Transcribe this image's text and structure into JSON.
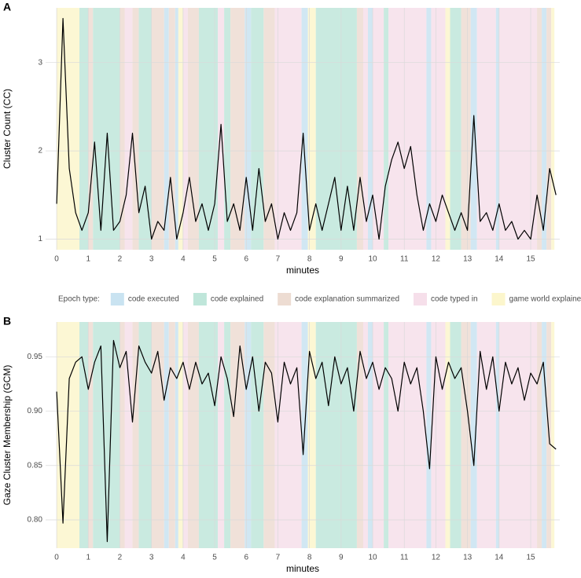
{
  "legend_title": "Epoch type:",
  "epoch_types": [
    {
      "name": "code executed",
      "color": "#c9e3f1"
    },
    {
      "name": "code explained",
      "color": "#bfe6da"
    },
    {
      "name": "code explanation summarized",
      "color": "#eddcd2"
    },
    {
      "name": "code typed in",
      "color": "#f6dfea"
    },
    {
      "name": "game world explained",
      "color": "#fcf6cc"
    }
  ],
  "epochs": [
    {
      "start": 0,
      "end": 0.72,
      "type": 4
    },
    {
      "start": 0.72,
      "end": 1.0,
      "type": 1
    },
    {
      "start": 1.0,
      "end": 1.15,
      "type": 2
    },
    {
      "start": 1.15,
      "end": 2.0,
      "type": 1
    },
    {
      "start": 2.0,
      "end": 2.15,
      "type": 2
    },
    {
      "start": 2.15,
      "end": 2.4,
      "type": 3
    },
    {
      "start": 2.4,
      "end": 2.6,
      "type": 2
    },
    {
      "start": 2.6,
      "end": 3.0,
      "type": 1
    },
    {
      "start": 3.0,
      "end": 3.4,
      "type": 2
    },
    {
      "start": 3.4,
      "end": 3.55,
      "type": 0
    },
    {
      "start": 3.55,
      "end": 3.75,
      "type": 2
    },
    {
      "start": 3.75,
      "end": 3.85,
      "type": 0
    },
    {
      "start": 3.85,
      "end": 4.0,
      "type": 4
    },
    {
      "start": 4.0,
      "end": 4.15,
      "type": 3
    },
    {
      "start": 4.15,
      "end": 4.5,
      "type": 2
    },
    {
      "start": 4.5,
      "end": 5.1,
      "type": 1
    },
    {
      "start": 5.1,
      "end": 5.3,
      "type": 3
    },
    {
      "start": 5.3,
      "end": 5.5,
      "type": 1
    },
    {
      "start": 5.5,
      "end": 5.95,
      "type": 2
    },
    {
      "start": 5.95,
      "end": 6.15,
      "type": 0
    },
    {
      "start": 6.15,
      "end": 6.55,
      "type": 1
    },
    {
      "start": 6.55,
      "end": 6.9,
      "type": 2
    },
    {
      "start": 6.9,
      "end": 7.75,
      "type": 3
    },
    {
      "start": 7.75,
      "end": 7.95,
      "type": 0
    },
    {
      "start": 7.95,
      "end": 8.2,
      "type": 4
    },
    {
      "start": 8.2,
      "end": 9.5,
      "type": 1
    },
    {
      "start": 9.5,
      "end": 9.7,
      "type": 2
    },
    {
      "start": 9.7,
      "end": 9.85,
      "type": 3
    },
    {
      "start": 9.85,
      "end": 10.0,
      "type": 0
    },
    {
      "start": 10.0,
      "end": 10.35,
      "type": 3
    },
    {
      "start": 10.35,
      "end": 10.5,
      "type": 1
    },
    {
      "start": 10.5,
      "end": 11.7,
      "type": 3
    },
    {
      "start": 11.7,
      "end": 11.85,
      "type": 0
    },
    {
      "start": 11.85,
      "end": 12.3,
      "type": 3
    },
    {
      "start": 12.3,
      "end": 12.45,
      "type": 4
    },
    {
      "start": 12.45,
      "end": 12.8,
      "type": 1
    },
    {
      "start": 12.8,
      "end": 13.1,
      "type": 2
    },
    {
      "start": 13.1,
      "end": 13.3,
      "type": 0
    },
    {
      "start": 13.3,
      "end": 13.9,
      "type": 3
    },
    {
      "start": 13.9,
      "end": 14.0,
      "type": 0
    },
    {
      "start": 14.0,
      "end": 15.2,
      "type": 3
    },
    {
      "start": 15.2,
      "end": 15.35,
      "type": 2
    },
    {
      "start": 15.35,
      "end": 15.5,
      "type": 0
    },
    {
      "start": 15.5,
      "end": 15.65,
      "type": 2
    },
    {
      "start": 15.65,
      "end": 15.75,
      "type": 4
    }
  ],
  "chart_data": [
    {
      "type": "line",
      "label": "A",
      "xlabel": "minutes",
      "ylabel": "Cluster Count (CC)",
      "xlim": [
        -0.35,
        15.92
      ],
      "xticks": [
        0,
        1,
        2,
        3,
        4,
        5,
        6,
        7,
        8,
        9,
        10,
        11,
        12,
        13,
        14,
        15
      ],
      "ylim": [
        0.88,
        3.62
      ],
      "yticks": [
        1,
        2,
        3
      ],
      "grid": true,
      "x": [
        0,
        0.2,
        0.4,
        0.6,
        0.8,
        1.0,
        1.2,
        1.4,
        1.6,
        1.8,
        2.0,
        2.2,
        2.4,
        2.6,
        2.8,
        3.0,
        3.2,
        3.4,
        3.6,
        3.8,
        4.0,
        4.2,
        4.4,
        4.6,
        4.8,
        5.0,
        5.2,
        5.4,
        5.6,
        5.8,
        6.0,
        6.2,
        6.4,
        6.6,
        6.8,
        7.0,
        7.2,
        7.4,
        7.6,
        7.8,
        8.0,
        8.2,
        8.4,
        8.6,
        8.8,
        9.0,
        9.2,
        9.4,
        9.6,
        9.8,
        10.0,
        10.2,
        10.4,
        10.6,
        10.8,
        11.0,
        11.2,
        11.4,
        11.6,
        11.8,
        12.0,
        12.2,
        12.4,
        12.6,
        12.8,
        13.0,
        13.2,
        13.4,
        13.6,
        13.8,
        14.0,
        14.2,
        14.4,
        14.6,
        14.8,
        15.0,
        15.2,
        15.4,
        15.6,
        15.8
      ],
      "series": [
        {
          "color": "#000000",
          "values": [
            1.4,
            3.5,
            1.8,
            1.3,
            1.1,
            1.3,
            2.1,
            1.1,
            2.2,
            1.1,
            1.2,
            1.5,
            2.2,
            1.3,
            1.6,
            1.0,
            1.2,
            1.1,
            1.7,
            1.0,
            1.3,
            1.7,
            1.2,
            1.4,
            1.1,
            1.4,
            2.3,
            1.2,
            1.4,
            1.1,
            1.7,
            1.1,
            1.8,
            1.2,
            1.4,
            1.0,
            1.3,
            1.1,
            1.3,
            2.2,
            1.1,
            1.4,
            1.1,
            1.4,
            1.7,
            1.1,
            1.6,
            1.1,
            1.7,
            1.2,
            1.5,
            1.0,
            1.6,
            1.9,
            2.1,
            1.8,
            2.05,
            1.5,
            1.1,
            1.4,
            1.2,
            1.5,
            1.3,
            1.1,
            1.3,
            1.1,
            2.4,
            1.2,
            1.3,
            1.1,
            1.4,
            1.1,
            1.2,
            1.0,
            1.1,
            1.0,
            1.5,
            1.1,
            1.8,
            1.5
          ]
        }
      ]
    },
    {
      "type": "line",
      "label": "B",
      "xlabel": "minutes",
      "ylabel": "Gaze Cluster Membership (GCM)",
      "xlim": [
        -0.35,
        15.92
      ],
      "xticks": [
        0,
        1,
        2,
        3,
        4,
        5,
        6,
        7,
        8,
        9,
        10,
        11,
        12,
        13,
        14,
        15
      ],
      "ylim": [
        0.774,
        0.982
      ],
      "yticks": [
        {
          "value": 0.8,
          "label": "0.80"
        },
        0.85,
        {
          "value": 0.9,
          "label": "0.90"
        },
        0.95
      ],
      "grid": true,
      "x": [
        0,
        0.2,
        0.4,
        0.6,
        0.8,
        1.0,
        1.2,
        1.4,
        1.6,
        1.8,
        2.0,
        2.2,
        2.4,
        2.6,
        2.8,
        3.0,
        3.2,
        3.4,
        3.6,
        3.8,
        4.0,
        4.2,
        4.4,
        4.6,
        4.8,
        5.0,
        5.2,
        5.4,
        5.6,
        5.8,
        6.0,
        6.2,
        6.4,
        6.6,
        6.8,
        7.0,
        7.2,
        7.4,
        7.6,
        7.8,
        8.0,
        8.2,
        8.4,
        8.6,
        8.8,
        9.0,
        9.2,
        9.4,
        9.6,
        9.8,
        10.0,
        10.2,
        10.4,
        10.6,
        10.8,
        11.0,
        11.2,
        11.4,
        11.6,
        11.8,
        12.0,
        12.2,
        12.4,
        12.6,
        12.8,
        13.0,
        13.2,
        13.4,
        13.6,
        13.8,
        14.0,
        14.2,
        14.4,
        14.6,
        14.8,
        15.0,
        15.2,
        15.4,
        15.6,
        15.8
      ],
      "series": [
        {
          "color": "#000000",
          "values": [
            0.918,
            0.797,
            0.93,
            0.945,
            0.95,
            0.92,
            0.945,
            0.96,
            0.78,
            0.965,
            0.94,
            0.955,
            0.89,
            0.96,
            0.945,
            0.935,
            0.955,
            0.91,
            0.94,
            0.93,
            0.945,
            0.92,
            0.945,
            0.925,
            0.935,
            0.905,
            0.95,
            0.93,
            0.895,
            0.96,
            0.92,
            0.95,
            0.9,
            0.945,
            0.935,
            0.89,
            0.945,
            0.925,
            0.94,
            0.86,
            0.955,
            0.93,
            0.945,
            0.905,
            0.95,
            0.925,
            0.94,
            0.9,
            0.955,
            0.93,
            0.945,
            0.92,
            0.94,
            0.93,
            0.9,
            0.945,
            0.925,
            0.94,
            0.9,
            0.847,
            0.95,
            0.92,
            0.945,
            0.93,
            0.94,
            0.9,
            0.85,
            0.955,
            0.92,
            0.95,
            0.9,
            0.945,
            0.925,
            0.94,
            0.91,
            0.935,
            0.925,
            0.945,
            0.87,
            0.865
          ]
        }
      ]
    }
  ]
}
